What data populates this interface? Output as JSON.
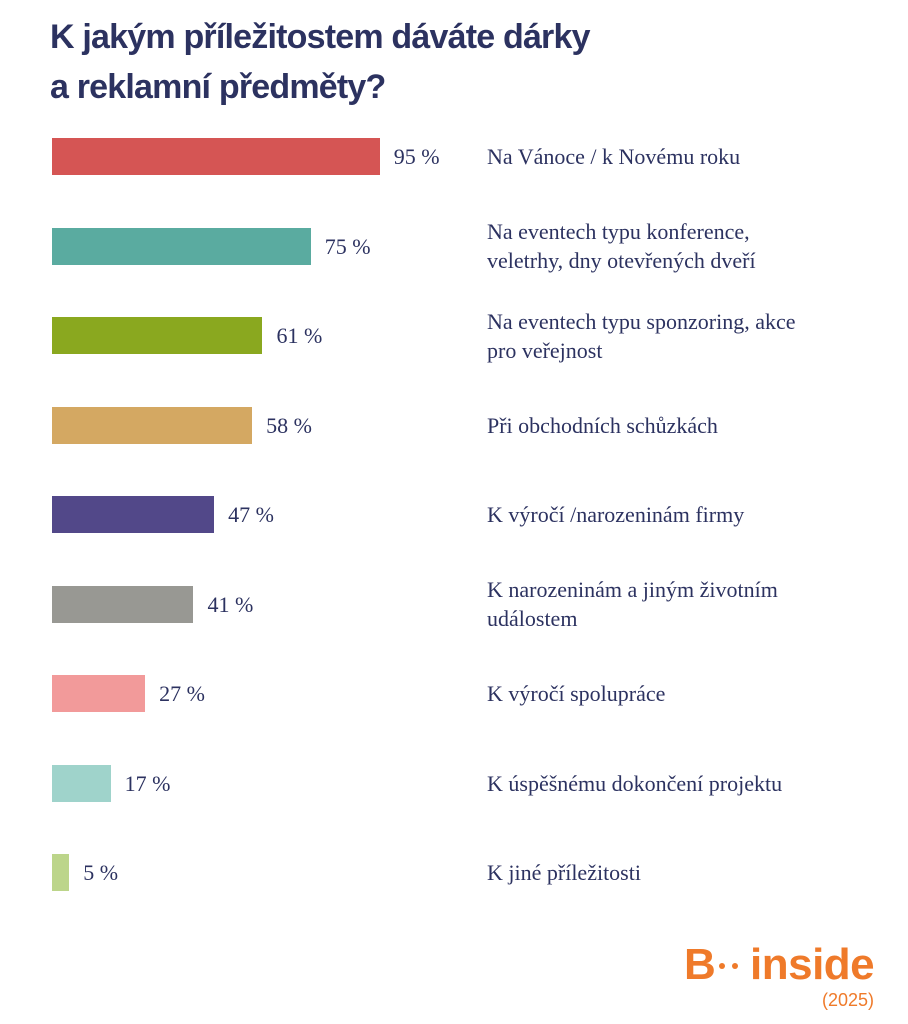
{
  "title_lines": [
    "K jakým příležitostem dáváte dárky",
    "a reklamní předměty?"
  ],
  "chart_data": {
    "type": "bar",
    "orientation": "horizontal",
    "title": "K jakým příležitostem dáváte dárky a reklamní předměty?",
    "categories": [
      [
        "Na Vánoce / k Novému roku"
      ],
      [
        "Na eventech typu konference,",
        "veletrhy, dny otevřených dveří"
      ],
      [
        "Na eventech typu sponzoring, akce",
        "pro veřejnost"
      ],
      [
        "Při obchodních schůzkách"
      ],
      [
        "K výročí /narozeninám firmy"
      ],
      [
        "K narozeninám a jiným životním",
        "událostem"
      ],
      [
        "K výročí spolupráce"
      ],
      [
        "K úspěšnému dokončení projektu"
      ],
      [
        "K jiné příležitosti"
      ]
    ],
    "values": [
      95,
      75,
      61,
      58,
      47,
      41,
      27,
      17,
      5
    ],
    "value_labels": [
      "95 %",
      "75 %",
      "61 %",
      "58 %",
      "47 %",
      "41 %",
      "27 %",
      "17 %",
      "5 %"
    ],
    "colors": [
      "#d55554",
      "#5aaba0",
      "#8aa81f",
      "#d4a862",
      "#524889",
      "#989893",
      "#f29a9a",
      "#9fd3cb",
      "#bcd58a"
    ],
    "xlim": [
      0,
      100
    ],
    "grid": false,
    "legend": "none"
  },
  "logo": {
    "text": "B··inside",
    "letter": "B",
    "word": "inside",
    "year": "(2025)",
    "color": "#ef7a2a"
  }
}
